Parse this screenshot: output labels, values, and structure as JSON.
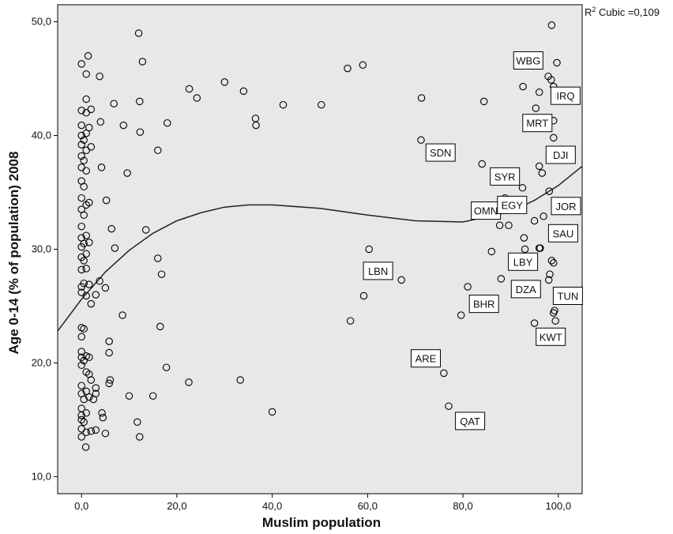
{
  "chart_data": {
    "type": "scatter",
    "xlabel": "Muslim population",
    "ylabel": "Age 0-14 (% of population) 2008",
    "xlim": [
      -5,
      105
    ],
    "ylim": [
      8.5,
      51.5
    ],
    "x_ticks": [
      "0,0",
      "20,0",
      "40,0",
      "60,0",
      "80,0",
      "100,0"
    ],
    "y_ticks": [
      "10,0",
      "20,0",
      "30,0",
      "40,0",
      "50,0"
    ],
    "annotation": {
      "prefix": "R",
      "superscript": "2",
      "suffix": " Cubic =0,109"
    },
    "fit_line": {
      "type": "cubic",
      "x": [
        -5,
        0,
        5,
        10,
        15,
        20,
        25,
        30,
        35,
        40,
        50,
        60,
        70,
        80,
        90,
        95,
        100,
        105
      ],
      "y": [
        22.8,
        25.6,
        28.0,
        29.9,
        31.4,
        32.5,
        33.2,
        33.7,
        33.9,
        33.9,
        33.6,
        33.0,
        32.5,
        32.4,
        33.3,
        34.3,
        35.6,
        37.3
      ]
    },
    "points": [
      {
        "x": 0,
        "y": 13.5
      },
      {
        "x": 0,
        "y": 14.2
      },
      {
        "x": 0,
        "y": 15.0
      },
      {
        "x": 0,
        "y": 15.4
      },
      {
        "x": 0,
        "y": 16.0
      },
      {
        "x": 0,
        "y": 17.3
      },
      {
        "x": 0,
        "y": 18.0
      },
      {
        "x": 0,
        "y": 19.8
      },
      {
        "x": 0,
        "y": 20.5
      },
      {
        "x": 0,
        "y": 21.0
      },
      {
        "x": 0,
        "y": 22.3
      },
      {
        "x": 0,
        "y": 23.1
      },
      {
        "x": 0,
        "y": 26.2
      },
      {
        "x": 0,
        "y": 26.7
      },
      {
        "x": 0,
        "y": 28.2
      },
      {
        "x": 0,
        "y": 29.3
      },
      {
        "x": 0,
        "y": 30.2
      },
      {
        "x": 0,
        "y": 31.0
      },
      {
        "x": 0,
        "y": 32.0
      },
      {
        "x": 0,
        "y": 33.5
      },
      {
        "x": 0,
        "y": 34.5
      },
      {
        "x": 0,
        "y": 36.0
      },
      {
        "x": 0,
        "y": 37.2
      },
      {
        "x": 0,
        "y": 38.2
      },
      {
        "x": 0,
        "y": 39.2
      },
      {
        "x": 0,
        "y": 40.0
      },
      {
        "x": 0,
        "y": 40.9
      },
      {
        "x": 0,
        "y": 42.2
      },
      {
        "x": 0,
        "y": 46.3
      },
      {
        "x": 0.5,
        "y": 14.8
      },
      {
        "x": 0.5,
        "y": 16.8
      },
      {
        "x": 0.5,
        "y": 20.2
      },
      {
        "x": 0.5,
        "y": 23.0
      },
      {
        "x": 0.5,
        "y": 27.0
      },
      {
        "x": 0.5,
        "y": 29.0
      },
      {
        "x": 0.5,
        "y": 30.5
      },
      {
        "x": 0.5,
        "y": 33.0
      },
      {
        "x": 0.5,
        "y": 35.5
      },
      {
        "x": 0.5,
        "y": 37.8
      },
      {
        "x": 0.5,
        "y": 39.6
      },
      {
        "x": 0.9,
        "y": 12.6
      },
      {
        "x": 1,
        "y": 13.9
      },
      {
        "x": 1,
        "y": 15.6
      },
      {
        "x": 1,
        "y": 17.5
      },
      {
        "x": 1,
        "y": 19.2
      },
      {
        "x": 1,
        "y": 20.6
      },
      {
        "x": 1,
        "y": 25.9
      },
      {
        "x": 1,
        "y": 28.3
      },
      {
        "x": 1,
        "y": 29.6
      },
      {
        "x": 1,
        "y": 31.2
      },
      {
        "x": 1,
        "y": 33.9
      },
      {
        "x": 1,
        "y": 36.9
      },
      {
        "x": 1,
        "y": 38.7
      },
      {
        "x": 1,
        "y": 40.2
      },
      {
        "x": 1,
        "y": 42.0
      },
      {
        "x": 1,
        "y": 43.2
      },
      {
        "x": 1,
        "y": 45.4
      },
      {
        "x": 1.4,
        "y": 47.0
      },
      {
        "x": 1.6,
        "y": 17.0
      },
      {
        "x": 1.6,
        "y": 19.0
      },
      {
        "x": 1.6,
        "y": 20.5
      },
      {
        "x": 1.6,
        "y": 26.9
      },
      {
        "x": 1.6,
        "y": 30.6
      },
      {
        "x": 1.6,
        "y": 34.1
      },
      {
        "x": 1.6,
        "y": 40.7
      },
      {
        "x": 2,
        "y": 14.0
      },
      {
        "x": 2,
        "y": 18.5
      },
      {
        "x": 2,
        "y": 25.2
      },
      {
        "x": 2,
        "y": 39.0
      },
      {
        "x": 2,
        "y": 42.3
      },
      {
        "x": 2.5,
        "y": 16.8
      },
      {
        "x": 3,
        "y": 14.1
      },
      {
        "x": 3,
        "y": 17.3
      },
      {
        "x": 3,
        "y": 17.8
      },
      {
        "x": 3,
        "y": 26.0
      },
      {
        "x": 3.8,
        "y": 27.2
      },
      {
        "x": 3.8,
        "y": 45.2
      },
      {
        "x": 4,
        "y": 41.2
      },
      {
        "x": 4.2,
        "y": 37.2
      },
      {
        "x": 4.3,
        "y": 15.6
      },
      {
        "x": 4.5,
        "y": 15.2
      },
      {
        "x": 5,
        "y": 13.8
      },
      {
        "x": 5,
        "y": 26.6
      },
      {
        "x": 5.2,
        "y": 34.3
      },
      {
        "x": 5.8,
        "y": 18.2
      },
      {
        "x": 5.8,
        "y": 20.9
      },
      {
        "x": 5.8,
        "y": 21.9
      },
      {
        "x": 6,
        "y": 18.5
      },
      {
        "x": 6.3,
        "y": 31.8
      },
      {
        "x": 6.8,
        "y": 42.8
      },
      {
        "x": 7,
        "y": 30.1
      },
      {
        "x": 8.6,
        "y": 24.2
      },
      {
        "x": 8.8,
        "y": 40.9
      },
      {
        "x": 9.6,
        "y": 36.7
      },
      {
        "x": 10,
        "y": 17.1
      },
      {
        "x": 11.7,
        "y": 14.8
      },
      {
        "x": 12,
        "y": 49.0
      },
      {
        "x": 12.2,
        "y": 13.5
      },
      {
        "x": 12.2,
        "y": 43.0
      },
      {
        "x": 12.3,
        "y": 40.3
      },
      {
        "x": 12.8,
        "y": 46.5
      },
      {
        "x": 13.5,
        "y": 31.7
      },
      {
        "x": 15,
        "y": 17.1
      },
      {
        "x": 16,
        "y": 38.7
      },
      {
        "x": 16,
        "y": 29.2
      },
      {
        "x": 16.5,
        "y": 23.2
      },
      {
        "x": 16.8,
        "y": 27.8
      },
      {
        "x": 17.8,
        "y": 19.6
      },
      {
        "x": 18,
        "y": 41.1
      },
      {
        "x": 22.5,
        "y": 18.3
      },
      {
        "x": 22.6,
        "y": 44.1
      },
      {
        "x": 24.2,
        "y": 43.3
      },
      {
        "x": 30,
        "y": 44.7
      },
      {
        "x": 33.3,
        "y": 18.5
      },
      {
        "x": 34,
        "y": 43.9
      },
      {
        "x": 36.5,
        "y": 41.5
      },
      {
        "x": 36.6,
        "y": 40.9
      },
      {
        "x": 40,
        "y": 15.7
      },
      {
        "x": 42.3,
        "y": 42.7
      },
      {
        "x": 50.3,
        "y": 42.7
      },
      {
        "x": 55.8,
        "y": 45.9
      },
      {
        "x": 56.4,
        "y": 23.7
      },
      {
        "x": 59,
        "y": 46.2
      },
      {
        "x": 59.2,
        "y": 25.9
      },
      {
        "x": 60.3,
        "y": 30.0
      },
      {
        "x": 67.1,
        "y": 27.3
      },
      {
        "x": 71.3,
        "y": 43.3
      },
      {
        "x": 71.2,
        "y": 39.6
      },
      {
        "x": 76,
        "y": 19.1
      },
      {
        "x": 77,
        "y": 16.2
      },
      {
        "x": 79.6,
        "y": 24.2
      },
      {
        "x": 81,
        "y": 26.7
      },
      {
        "x": 84,
        "y": 37.5
      },
      {
        "x": 84.4,
        "y": 43.0
      },
      {
        "x": 86,
        "y": 29.8
      },
      {
        "x": 87.7,
        "y": 32.1
      },
      {
        "x": 88,
        "y": 27.4
      },
      {
        "x": 88.8,
        "y": 34.5
      },
      {
        "x": 89.6,
        "y": 32.1
      },
      {
        "x": 92.5,
        "y": 35.4
      },
      {
        "x": 92.6,
        "y": 44.3
      },
      {
        "x": 92.8,
        "y": 31.0
      },
      {
        "x": 93,
        "y": 30.0
      },
      {
        "x": 95,
        "y": 32.5
      },
      {
        "x": 95,
        "y": 23.5
      },
      {
        "x": 95.3,
        "y": 42.4
      },
      {
        "x": 96,
        "y": 43.8
      },
      {
        "x": 96,
        "y": 37.3
      },
      {
        "x": 96,
        "y": 30.1
      },
      {
        "x": 96.2,
        "y": 30.1
      },
      {
        "x": 96.6,
        "y": 36.7
      },
      {
        "x": 96.9,
        "y": 32.9
      },
      {
        "x": 97.9,
        "y": 45.2
      },
      {
        "x": 98.1,
        "y": 35.1
      },
      {
        "x": 98.2,
        "y": 27.8
      },
      {
        "x": 98.5,
        "y": 44.9
      },
      {
        "x": 98.6,
        "y": 29.0
      },
      {
        "x": 98.6,
        "y": 49.7
      },
      {
        "x": 99,
        "y": 44.3
      },
      {
        "x": 99,
        "y": 41.3
      },
      {
        "x": 99,
        "y": 39.8
      },
      {
        "x": 99,
        "y": 28.8
      },
      {
        "x": 99,
        "y": 24.4
      },
      {
        "x": 99.2,
        "y": 24.6
      },
      {
        "x": 99.4,
        "y": 23.7
      },
      {
        "x": 99.7,
        "y": 46.4
      },
      {
        "x": 98,
        "y": 27.3
      }
    ],
    "labels": [
      {
        "text": "WBG",
        "x": 93.7,
        "y": 46.6
      },
      {
        "text": "IRQ",
        "x": 101.5,
        "y": 43.5
      },
      {
        "text": "MRT",
        "x": 95.6,
        "y": 41.1
      },
      {
        "text": "SDN",
        "x": 75.3,
        "y": 38.5
      },
      {
        "text": "DJI",
        "x": 100.5,
        "y": 38.3
      },
      {
        "text": "SYR",
        "x": 88.8,
        "y": 36.4
      },
      {
        "text": "OMN",
        "x": 84.8,
        "y": 33.4
      },
      {
        "text": "EGY",
        "x": 90.3,
        "y": 33.9
      },
      {
        "text": "JOR",
        "x": 101.6,
        "y": 33.8
      },
      {
        "text": "SAU",
        "x": 101.0,
        "y": 31.4
      },
      {
        "text": "LBY",
        "x": 92.6,
        "y": 28.9
      },
      {
        "text": "LBN",
        "x": 62.2,
        "y": 28.1
      },
      {
        "text": "DZA",
        "x": 93.2,
        "y": 26.5
      },
      {
        "text": "TUN",
        "x": 102.0,
        "y": 25.9
      },
      {
        "text": "BHR",
        "x": 84.4,
        "y": 25.2
      },
      {
        "text": "KWT",
        "x": 98.4,
        "y": 22.3
      },
      {
        "text": "ARE",
        "x": 72.2,
        "y": 20.4
      },
      {
        "text": "QAT",
        "x": 81.5,
        "y": 14.9
      }
    ]
  }
}
